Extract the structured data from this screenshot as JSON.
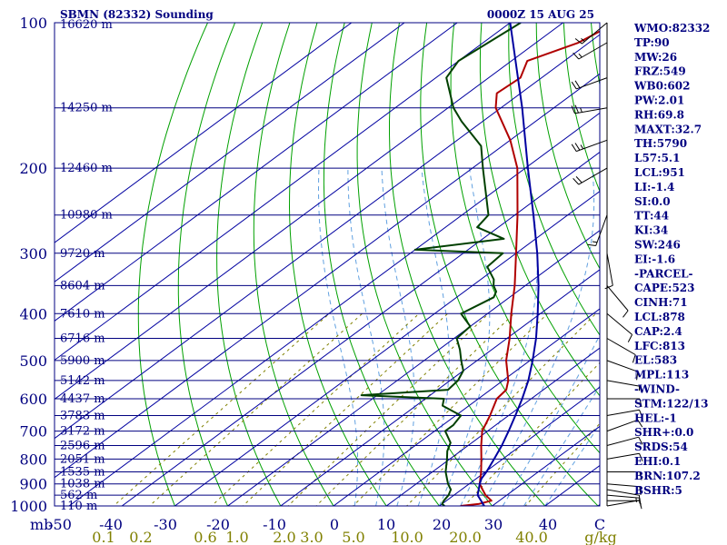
{
  "header": {
    "station": "SBMN (82332) Sounding",
    "time": "0000Z 15 AUG 25"
  },
  "chart_data": {
    "type": "line",
    "chart_kind": "skew-T log-P sounding",
    "pressure_axis": {
      "unit_label": "mb",
      "range": [
        1000,
        100
      ],
      "ticks": [
        100,
        200,
        300,
        400,
        500,
        600,
        700,
        800,
        900,
        1000
      ],
      "scale": "log"
    },
    "temperature_axis": {
      "unit_label": "C",
      "ticks": [
        -50,
        -40,
        -30,
        -20,
        -10,
        0,
        10,
        20,
        30,
        40
      ],
      "tick_labels": [
        "-50",
        "-40",
        "-30",
        "-20",
        "-10",
        "0",
        "10",
        "20",
        "30",
        "40"
      ]
    },
    "mixing_ratio_axis": {
      "unit_label": "g/kg",
      "ticks": [
        0.1,
        0.2,
        0.6,
        1.0,
        2.0,
        3.0,
        5.0,
        10.0,
        20.0,
        40.0
      ],
      "tick_labels": [
        "0.1",
        "0.2",
        "0.6",
        "1.0",
        "2.0",
        "3.0",
        "5.0",
        "10.0",
        "20.0",
        "40.0"
      ]
    },
    "height_labels": [
      {
        "p": 100,
        "label": "16620 m"
      },
      {
        "p": 150,
        "label": "14250 m"
      },
      {
        "p": 200,
        "label": "12460 m"
      },
      {
        "p": 250,
        "label": "10980 m"
      },
      {
        "p": 300,
        "label": "9720 m"
      },
      {
        "p": 350,
        "label": "8604 m"
      },
      {
        "p": 400,
        "label": "7610 m"
      },
      {
        "p": 450,
        "label": "6716 m"
      },
      {
        "p": 500,
        "label": "5900 m"
      },
      {
        "p": 550,
        "label": "5142 m"
      },
      {
        "p": 600,
        "label": "4437 m"
      },
      {
        "p": 650,
        "label": "3783 m"
      },
      {
        "p": 700,
        "label": "3172 m"
      },
      {
        "p": 750,
        "label": "2596 m"
      },
      {
        "p": 800,
        "label": "2051 m"
      },
      {
        "p": 850,
        "label": "1535 m"
      },
      {
        "p": 900,
        "label": "1038 m"
      },
      {
        "p": 950,
        "label": "562 m"
      },
      {
        "p": 1000,
        "label": "110 m"
      }
    ],
    "series": [
      {
        "color": "#b00000",
        "description_key": "temperature",
        "points": [
          {
            "p": 1000,
            "t": 24.0
          },
          {
            "p": 990,
            "t": 27.0
          },
          {
            "p": 975,
            "t": 28.5
          },
          {
            "p": 950,
            "t": 26.0
          },
          {
            "p": 925,
            "t": 24.0
          },
          {
            "p": 900,
            "t": 22.0
          },
          {
            "p": 850,
            "t": 19.2
          },
          {
            "p": 800,
            "t": 16.0
          },
          {
            "p": 750,
            "t": 12.5
          },
          {
            "p": 700,
            "t": 9.0
          },
          {
            "p": 650,
            "t": 6.5
          },
          {
            "p": 600,
            "t": 3.5
          },
          {
            "p": 575,
            "t": 3.0
          },
          {
            "p": 550,
            "t": 1.0
          },
          {
            "p": 500,
            "t": -4.5
          },
          {
            "p": 450,
            "t": -9.5
          },
          {
            "p": 400,
            "t": -15.5
          },
          {
            "p": 350,
            "t": -22.0
          },
          {
            "p": 300,
            "t": -30.0
          },
          {
            "p": 250,
            "t": -39.5
          },
          {
            "p": 200,
            "t": -51.5
          },
          {
            "p": 175,
            "t": -60.0
          },
          {
            "p": 150,
            "t": -71.0
          },
          {
            "p": 140,
            "t": -74.5
          },
          {
            "p": 130,
            "t": -74.0
          },
          {
            "p": 120,
            "t": -77.0
          },
          {
            "p": 110,
            "t": -72.0
          },
          {
            "p": 100,
            "t": -70.0
          }
        ]
      },
      {
        "color": "#004000",
        "description_key": "dewpoint",
        "points": [
          {
            "p": 1000,
            "t": 21.0
          },
          {
            "p": 990,
            "t": 20.0
          },
          {
            "p": 975,
            "t": 19.5
          },
          {
            "p": 950,
            "t": 19.0
          },
          {
            "p": 925,
            "t": 18.0
          },
          {
            "p": 900,
            "t": 16.0
          },
          {
            "p": 850,
            "t": 12.5
          },
          {
            "p": 800,
            "t": 9.5
          },
          {
            "p": 770,
            "t": 7.5
          },
          {
            "p": 740,
            "t": 6.0
          },
          {
            "p": 700,
            "t": 2.0
          },
          {
            "p": 680,
            "t": 2.0
          },
          {
            "p": 650,
            "t": 1.0
          },
          {
            "p": 620,
            "t": -5.0
          },
          {
            "p": 600,
            "t": -6.5
          },
          {
            "p": 590,
            "t": -23.0
          },
          {
            "p": 575,
            "t": -8.0
          },
          {
            "p": 550,
            "t": -8.5
          },
          {
            "p": 525,
            "t": -10.0
          },
          {
            "p": 500,
            "t": -13.0
          },
          {
            "p": 475,
            "t": -16.0
          },
          {
            "p": 450,
            "t": -19.5
          },
          {
            "p": 425,
            "t": -20.0
          },
          {
            "p": 400,
            "t": -25.0
          },
          {
            "p": 370,
            "t": -23.0
          },
          {
            "p": 360,
            "t": -24.0
          },
          {
            "p": 350,
            "t": -26.0
          },
          {
            "p": 340,
            "t": -27.5
          },
          {
            "p": 320,
            "t": -32.0
          },
          {
            "p": 300,
            "t": -32.5
          },
          {
            "p": 295,
            "t": -50.0
          },
          {
            "p": 280,
            "t": -36.0
          },
          {
            "p": 265,
            "t": -44.0
          },
          {
            "p": 250,
            "t": -45.0
          },
          {
            "p": 200,
            "t": -58.0
          },
          {
            "p": 180,
            "t": -64.0
          },
          {
            "p": 160,
            "t": -74.0
          },
          {
            "p": 150,
            "t": -79.0
          },
          {
            "p": 130,
            "t": -88.0
          },
          {
            "p": 120,
            "t": -90.0
          },
          {
            "p": 100,
            "t": -88.0
          }
        ]
      },
      {
        "color": "#0000a0",
        "description_key": "parcel",
        "points": [
          {
            "p": 1000,
            "t": 28.5
          },
          {
            "p": 950,
            "t": 24.5
          },
          {
            "p": 900,
            "t": 22.0
          },
          {
            "p": 878,
            "t": 21.0
          },
          {
            "p": 850,
            "t": 20.2
          },
          {
            "p": 800,
            "t": 18.4
          },
          {
            "p": 750,
            "t": 16.4
          },
          {
            "p": 700,
            "t": 14.0
          },
          {
            "p": 650,
            "t": 11.3
          },
          {
            "p": 600,
            "t": 8.3
          },
          {
            "p": 550,
            "t": 4.8
          },
          {
            "p": 500,
            "t": 0.5
          },
          {
            "p": 450,
            "t": -4.5
          },
          {
            "p": 400,
            "t": -10.5
          },
          {
            "p": 350,
            "t": -17.5
          },
          {
            "p": 300,
            "t": -26.0
          },
          {
            "p": 250,
            "t": -36.5
          },
          {
            "p": 200,
            "t": -49.5
          },
          {
            "p": 150,
            "t": -66.0
          },
          {
            "p": 100,
            "t": -90.0
          }
        ]
      }
    ],
    "wind_barbs": [
      {
        "p": 1000,
        "dir": 80,
        "spd": 5
      },
      {
        "p": 975,
        "dir": 90,
        "spd": 10
      },
      {
        "p": 950,
        "dir": 95,
        "spd": 15
      },
      {
        "p": 925,
        "dir": 100,
        "spd": 10
      },
      {
        "p": 900,
        "dir": 95,
        "spd": 10
      },
      {
        "p": 850,
        "dir": 90,
        "spd": 10
      },
      {
        "p": 800,
        "dir": 80,
        "spd": 10
      },
      {
        "p": 750,
        "dir": 75,
        "spd": 10
      },
      {
        "p": 700,
        "dir": 70,
        "spd": 10
      },
      {
        "p": 650,
        "dir": 80,
        "spd": 10
      },
      {
        "p": 600,
        "dir": 90,
        "spd": 10
      },
      {
        "p": 550,
        "dir": 100,
        "spd": 5
      },
      {
        "p": 500,
        "dir": 110,
        "spd": 10
      },
      {
        "p": 450,
        "dir": 120,
        "spd": 10
      },
      {
        "p": 400,
        "dir": 130,
        "spd": 10
      },
      {
        "p": 350,
        "dir": 140,
        "spd": 10
      },
      {
        "p": 300,
        "dir": 170,
        "spd": 10
      },
      {
        "p": 250,
        "dir": 200,
        "spd": 15
      },
      {
        "p": 200,
        "dir": 240,
        "spd": 20
      },
      {
        "p": 175,
        "dir": 250,
        "spd": 25
      },
      {
        "p": 150,
        "dir": 260,
        "spd": 25
      },
      {
        "p": 130,
        "dir": 250,
        "spd": 20
      },
      {
        "p": 110,
        "dir": 240,
        "spd": 15
      },
      {
        "p": 100,
        "dir": 230,
        "spd": 15
      }
    ]
  },
  "indices": [
    "WMO:82332",
    "TP:90",
    "MW:26",
    "FRZ:549",
    "WB0:602",
    "PW:2.01",
    "RH:69.8",
    "MAXT:32.7",
    "TH:5790",
    "L57:5.1",
    "LCL:951",
    "LI:-1.4",
    "SI:0.0",
    "TT:44",
    "KI:34",
    "SW:246",
    "EI:-1.6",
    "-PARCEL-",
    "CAPE:523",
    "CINH:71",
    "LCL:878",
    "CAP:2.4",
    "LFC:813",
    "EL:583",
    "MPL:113",
    "-WIND-",
    "STM:122/13",
    "HEL:-1",
    "SHR+:0.0",
    "SRDS:54",
    "EHI:0.1",
    "BRN:107.2",
    "BSHR:5"
  ],
  "colors": {
    "isobar": "#000080",
    "isotherm": "#0000a0",
    "dry_adiabat": "#00a000",
    "moist_adiabat": "#60a0e0",
    "mixing_ratio": "#808000",
    "temperature": "#b00000",
    "dewpoint": "#004000",
    "parcel": "#0000a0"
  }
}
